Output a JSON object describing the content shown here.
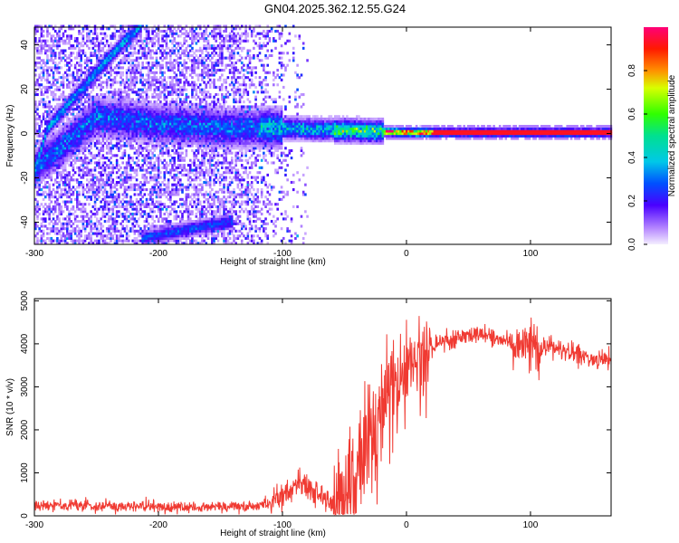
{
  "title": "GN04.2025.362.12.55.G24",
  "chart_data": [
    {
      "type": "heatmap",
      "xlabel": "Height of straight line (km)",
      "ylabel": "Frequency (Hz)",
      "xlim": [
        -300,
        165
      ],
      "ylim": [
        -50,
        48
      ],
      "xticks": [
        -300,
        -200,
        -100,
        0,
        100
      ],
      "yticks": [
        -40,
        -20,
        0,
        20,
        40
      ],
      "colorbar": {
        "label": "Normalized spectral amplitude",
        "range": [
          0,
          1
        ],
        "ticks": [
          "0.0",
          "0.2",
          "0.4",
          "0.6",
          "0.8"
        ],
        "colormap": "rainbow (white-violet to magenta-red)"
      },
      "features": [
        {
          "kind": "main-line",
          "x": [
            -300,
            -250,
            -200,
            -150,
            -100,
            -50,
            0,
            50,
            100,
            165
          ],
          "y": [
            -16,
            7,
            4,
            2,
            2,
            1,
            0,
            0,
            0,
            0
          ]
        },
        {
          "kind": "rising-branch",
          "x": [
            -300,
            -290,
            -270,
            -250,
            -230,
            -215
          ],
          "y": [
            -16,
            2,
            15,
            28,
            40,
            48
          ]
        },
        {
          "kind": "lower-branch",
          "x": [
            -215,
            -180,
            -140
          ],
          "y": [
            -48,
            -44,
            -40
          ]
        }
      ]
    },
    {
      "type": "line",
      "xlabel": "Height of straight line (km)",
      "ylabel": "SNR (10 * v/v)",
      "xlim": [
        -300,
        165
      ],
      "ylim": [
        0,
        5050
      ],
      "xticks": [
        -300,
        -200,
        -100,
        0,
        100
      ],
      "yticks": [
        0,
        1000,
        2000,
        3000,
        4000,
        5000
      ],
      "color": "#f03a32",
      "x": [
        -300,
        -280,
        -260,
        -240,
        -220,
        -200,
        -180,
        -160,
        -140,
        -120,
        -110,
        -100,
        -90,
        -80,
        -70,
        -60,
        -50,
        -45,
        -40,
        -35,
        -30,
        -25,
        -20,
        -15,
        -10,
        -5,
        0,
        10,
        20,
        30,
        40,
        50,
        60,
        70,
        80,
        90,
        100,
        110,
        120,
        130,
        140,
        150,
        165
      ],
      "y": [
        250,
        250,
        240,
        230,
        220,
        210,
        200,
        200,
        210,
        240,
        300,
        450,
        650,
        750,
        500,
        200,
        250,
        450,
        800,
        1500,
        2000,
        1700,
        2300,
        2800,
        2700,
        3100,
        3300,
        3700,
        3900,
        4100,
        4150,
        4200,
        4180,
        4150,
        4100,
        4000,
        4000,
        3950,
        3900,
        3800,
        3750,
        3650,
        3650
      ]
    }
  ]
}
